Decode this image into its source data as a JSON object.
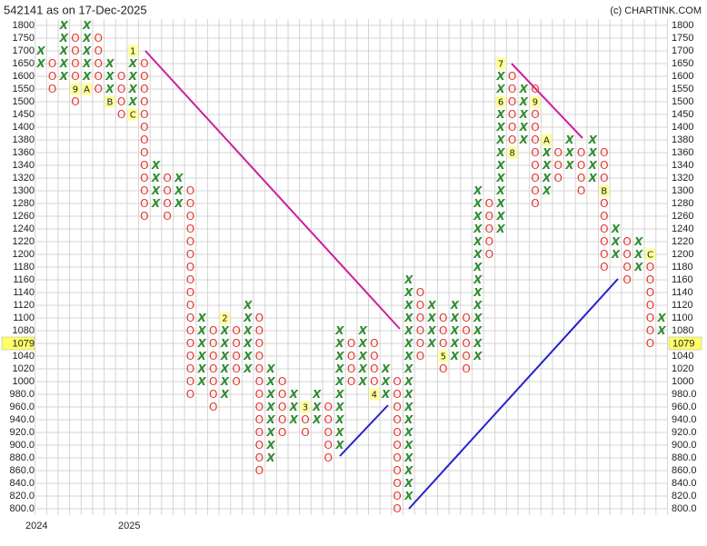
{
  "chart_data": {
    "type": "point-and-figure",
    "title": "542141 as on 17-Dec-2025",
    "credit": "(c) CHARTINK.COM",
    "x_color": "#2e8b2e",
    "o_color": "#e8342c",
    "ylim": [
      800,
      1800
    ],
    "yticks": [
      1800,
      1750,
      1700,
      1650,
      1600,
      1550,
      1500,
      1450,
      1400,
      1380,
      1360,
      1340,
      1320,
      1300,
      1280,
      1260,
      1240,
      1220,
      1200,
      1180,
      1160,
      1140,
      1120,
      1100,
      1080,
      1060,
      1040,
      1020,
      1000,
      {
        "value": 980,
        "label": "980.0"
      },
      {
        "value": 960,
        "label": "960.0"
      },
      {
        "value": 940,
        "label": "940.0"
      },
      {
        "value": 920,
        "label": "920.0"
      },
      {
        "value": 900,
        "label": "900.0"
      },
      {
        "value": 880,
        "label": "880.0"
      },
      {
        "value": 860,
        "label": "860.0"
      },
      {
        "value": 840,
        "label": "840.0"
      },
      {
        "value": 820,
        "label": "820.0"
      },
      {
        "value": 800,
        "label": "800.0"
      }
    ],
    "grid": true,
    "last_price": 1079,
    "x_labels": [
      "2024",
      "2025"
    ],
    "columns": [
      {
        "type": "X",
        "low": 1650,
        "high": 1700
      },
      {
        "type": "O",
        "low": 1550,
        "high": 1650
      },
      {
        "type": "X",
        "low": 1600,
        "high": 1800
      },
      {
        "type": "O",
        "low": 1500,
        "high": 1750,
        "markers": [
          {
            "label": "9",
            "at": 1550
          }
        ]
      },
      {
        "type": "X",
        "low": 1550,
        "high": 1800,
        "markers": [
          {
            "label": "A",
            "at": 1550
          }
        ]
      },
      {
        "type": "O",
        "low": 1550,
        "high": 1750
      },
      {
        "type": "X",
        "low": 1500,
        "high": 1650,
        "markers": [
          {
            "label": "B",
            "at": 1500
          }
        ]
      },
      {
        "type": "O",
        "low": 1450,
        "high": 1600
      },
      {
        "type": "X",
        "low": 1450,
        "high": 1700,
        "markers": [
          {
            "label": "1",
            "at": 1700
          },
          {
            "label": "C",
            "at": 1450
          }
        ]
      },
      {
        "type": "O",
        "low": 1260,
        "high": 1650
      },
      {
        "type": "X",
        "low": 1280,
        "high": 1340
      },
      {
        "type": "O",
        "low": 1260,
        "high": 1320
      },
      {
        "type": "X",
        "low": 1280,
        "high": 1320
      },
      {
        "type": "O",
        "low": 980,
        "high": 1300
      },
      {
        "type": "X",
        "low": 1000,
        "high": 1100
      },
      {
        "type": "O",
        "low": 960,
        "high": 1080
      },
      {
        "type": "X",
        "low": 980,
        "high": 1100,
        "markers": [
          {
            "label": "2",
            "at": 1100
          }
        ]
      },
      {
        "type": "O",
        "low": 1000,
        "high": 1080
      },
      {
        "type": "X",
        "low": 1020,
        "high": 1120
      },
      {
        "type": "O",
        "low": 860,
        "high": 1100
      },
      {
        "type": "X",
        "low": 880,
        "high": 1020
      },
      {
        "type": "O",
        "low": 920,
        "high": 1000
      },
      {
        "type": "X",
        "low": 940,
        "high": 980
      },
      {
        "type": "O",
        "low": 920,
        "high": 960,
        "markers": [
          {
            "label": "3",
            "at": 960
          }
        ]
      },
      {
        "type": "X",
        "low": 940,
        "high": 980
      },
      {
        "type": "O",
        "low": 880,
        "high": 960
      },
      {
        "type": "X",
        "low": 900,
        "high": 1080
      },
      {
        "type": "O",
        "low": 1000,
        "high": 1060
      },
      {
        "type": "X",
        "low": 1000,
        "high": 1080
      },
      {
        "type": "O",
        "low": 980,
        "high": 1060,
        "markers": [
          {
            "label": "4",
            "at": 980
          }
        ]
      },
      {
        "type": "X",
        "low": 980,
        "high": 1020
      },
      {
        "type": "O",
        "low": 800,
        "high": 1000
      },
      {
        "type": "X",
        "low": 820,
        "high": 1160
      },
      {
        "type": "O",
        "low": 1040,
        "high": 1140
      },
      {
        "type": "X",
        "low": 1060,
        "high": 1120
      },
      {
        "type": "O",
        "low": 1020,
        "high": 1100,
        "markers": [
          {
            "label": "5",
            "at": 1040
          }
        ]
      },
      {
        "type": "X",
        "low": 1040,
        "high": 1120
      },
      {
        "type": "O",
        "low": 1020,
        "high": 1100
      },
      {
        "type": "X",
        "low": 1040,
        "high": 1300
      },
      {
        "type": "O",
        "low": 1200,
        "high": 1280
      },
      {
        "type": "X",
        "low": 1240,
        "high": 1650,
        "markers": [
          {
            "label": "7",
            "at": 1650
          },
          {
            "label": "6",
            "at": 1500
          }
        ]
      },
      {
        "type": "O",
        "low": 1360,
        "high": 1600,
        "markers": [
          {
            "label": "8",
            "at": 1360
          }
        ]
      },
      {
        "type": "X",
        "low": 1380,
        "high": 1550
      },
      {
        "type": "O",
        "low": 1280,
        "high": 1550,
        "markers": [
          {
            "label": "9",
            "at": 1500
          }
        ]
      },
      {
        "type": "X",
        "low": 1300,
        "high": 1380,
        "markers": [
          {
            "label": "A",
            "at": 1380
          }
        ]
      },
      {
        "type": "O",
        "low": 1320,
        "high": 1360
      },
      {
        "type": "X",
        "low": 1340,
        "high": 1380
      },
      {
        "type": "O",
        "low": 1300,
        "high": 1360
      },
      {
        "type": "X",
        "low": 1320,
        "high": 1380
      },
      {
        "type": "O",
        "low": 1180,
        "high": 1360,
        "markers": [
          {
            "label": "B",
            "at": 1300
          }
        ]
      },
      {
        "type": "X",
        "low": 1200,
        "high": 1240
      },
      {
        "type": "O",
        "low": 1160,
        "high": 1220
      },
      {
        "type": "X",
        "low": 1180,
        "high": 1220
      },
      {
        "type": "O",
        "low": 1060,
        "high": 1200,
        "markers": [
          {
            "label": "C",
            "at": 1200
          }
        ]
      },
      {
        "type": "X",
        "low": 1080,
        "high": 1100
      }
    ]
  }
}
